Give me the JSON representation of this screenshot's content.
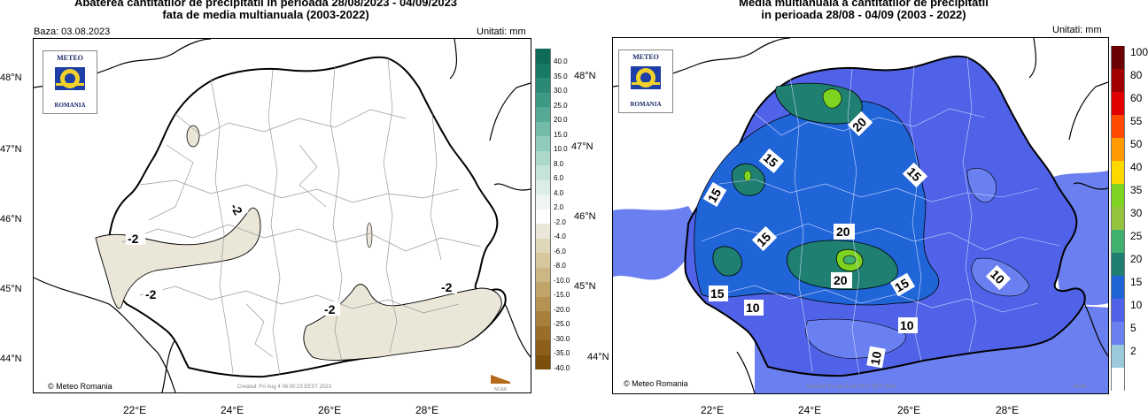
{
  "left": {
    "title_line1": "Abaterea cantitatilor de precipitatii in perioada 28/08/2023 - 04/09/2023",
    "title_line2": "fata de media multianuala (2003-2022)",
    "baza": "Baza: 03.08.2023",
    "unitati": "Unitati: mm",
    "copyright": "© Meteo Romania",
    "created": "Created: Fri Aug  4 06:00:23 EEST 2023",
    "lat_labels": [
      "48°N",
      "47°N",
      "46°N",
      "45°N",
      "44°N"
    ],
    "lon_labels": [
      "22°E",
      "24°E",
      "26°E",
      "28°E"
    ],
    "legend_lat_labels": [
      "48°N",
      "47°N",
      "46°N",
      "45°N"
    ],
    "contour_labels": [
      "-2",
      "-2",
      "-2",
      "-2",
      "-2"
    ],
    "legend": [
      {
        "label": "40.0",
        "color": "#0e6b57"
      },
      {
        "label": "35.0",
        "color": "#197a66"
      },
      {
        "label": "30.0",
        "color": "#2a8a76"
      },
      {
        "label": "25.0",
        "color": "#3d9984"
      },
      {
        "label": "20.0",
        "color": "#56aa95"
      },
      {
        "label": "15.0",
        "color": "#72bba8"
      },
      {
        "label": "10.0",
        "color": "#91cbbb"
      },
      {
        "label": "8.0",
        "color": "#acd8ca"
      },
      {
        "label": "6.0",
        "color": "#c5e3d9"
      },
      {
        "label": "4.0",
        "color": "#dcede7"
      },
      {
        "label": "2.0",
        "color": "#eef5f2"
      },
      {
        "label": "-2.0",
        "color": "#ffffff"
      },
      {
        "label": "-4.0",
        "color": "#ebe7d8"
      },
      {
        "label": "-6.0",
        "color": "#e0d6ba"
      },
      {
        "label": "-8.0",
        "color": "#d6c79d"
      },
      {
        "label": "-10.0",
        "color": "#cbb684"
      },
      {
        "label": "-15.0",
        "color": "#c0a46a"
      },
      {
        "label": "-20.0",
        "color": "#b59252"
      },
      {
        "label": "-25.0",
        "color": "#a87f3a"
      },
      {
        "label": "-30.0",
        "color": "#9b6e28"
      },
      {
        "label": "-35.0",
        "color": "#8c5e18"
      },
      {
        "label": "-40.0",
        "color": "#7b4f0c"
      }
    ]
  },
  "right": {
    "title_line1": "Media multianuala a cantitatilor de precipitatii",
    "title_line2": "in perioada 28/08 - 04/09 (2003 - 2022)",
    "unitati": "Unitati: mm",
    "copyright": "© Meteo Romania",
    "created": "Created: Fri Jan  6 16:23:27 EET 2023",
    "lat_labels": [
      "48°N",
      "47°N",
      "46°N",
      "45°N",
      "44°N"
    ],
    "lon_labels": [
      "22°E",
      "24°E",
      "26°E",
      "28°E"
    ],
    "contour_labels": [
      "20",
      "15",
      "15",
      "15",
      "15",
      "20",
      "20",
      "15",
      "15",
      "10",
      "10",
      "10",
      "10"
    ],
    "legend": [
      {
        "label": "100",
        "color": "#6a0000"
      },
      {
        "label": "80",
        "color": "#a00000"
      },
      {
        "label": "60",
        "color": "#e00000"
      },
      {
        "label": "55",
        "color": "#ff4a00"
      },
      {
        "label": "50",
        "color": "#ff9a00"
      },
      {
        "label": "40",
        "color": "#ffd800"
      },
      {
        "label": "35",
        "color": "#7ed321"
      },
      {
        "label": "30",
        "color": "#95c23c"
      },
      {
        "label": "25",
        "color": "#3fb06e"
      },
      {
        "label": "20",
        "color": "#1f7f70"
      },
      {
        "label": "15",
        "color": "#2065d8"
      },
      {
        "label": "10",
        "color": "#4f62e8"
      },
      {
        "label": "5",
        "color": "#6b80f0"
      },
      {
        "label": "2",
        "color": "#9ac9db"
      },
      {
        "label": "",
        "color": "#ffffff"
      }
    ]
  },
  "logo": {
    "top": "METEO",
    "bottom": "ROMANIA"
  },
  "ncar": "NCAR"
}
